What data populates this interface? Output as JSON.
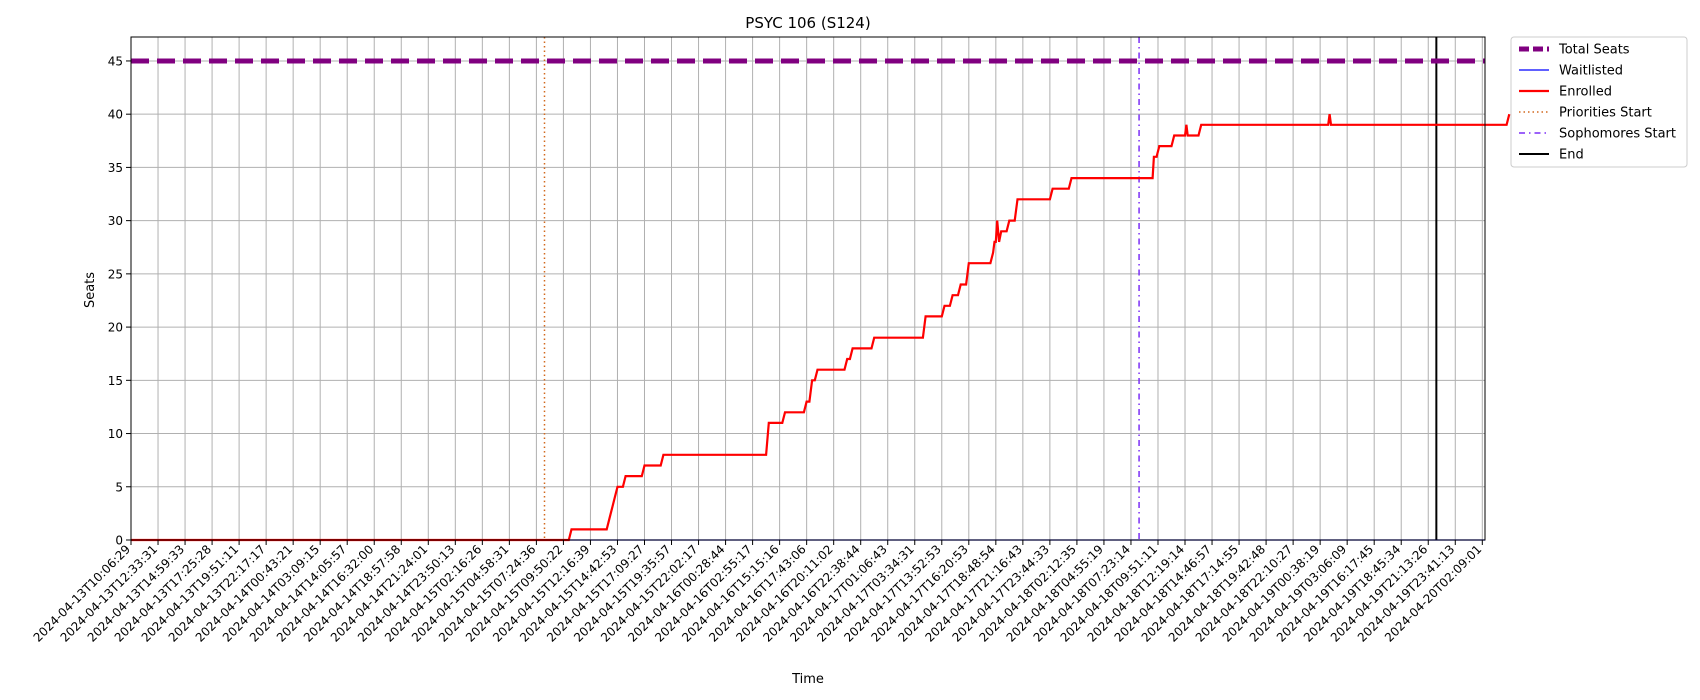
{
  "chart_data": {
    "type": "line",
    "title": "PSYC 106 (S124)",
    "xlabel": "Time",
    "ylabel": "Seats",
    "ylim": [
      0,
      47.25
    ],
    "y_ticks": [
      0,
      5,
      10,
      15,
      20,
      25,
      30,
      35,
      40,
      45
    ],
    "grid": true,
    "legend_position": "outside-top-right",
    "x_tick_labels": [
      "2024-04-13T10:06:29",
      "2024-04-13T12:33:31",
      "2024-04-13T14:59:33",
      "2024-04-13T17:25:28",
      "2024-04-13T19:51:11",
      "2024-04-13T22:17:17",
      "2024-04-14T00:43:21",
      "2024-04-14T03:09:15",
      "2024-04-14T14:05:57",
      "2024-04-14T16:32:00",
      "2024-04-14T18:57:58",
      "2024-04-14T21:24:01",
      "2024-04-14T23:50:13",
      "2024-04-15T02:16:26",
      "2024-04-15T04:58:31",
      "2024-04-15T07:24:36",
      "2024-04-15T09:50:22",
      "2024-04-15T12:16:39",
      "2024-04-15T14:42:53",
      "2024-04-15T17:09:27",
      "2024-04-15T19:35:57",
      "2024-04-15T22:02:17",
      "2024-04-16T00:28:44",
      "2024-04-16T02:55:17",
      "2024-04-16T15:15:16",
      "2024-04-16T17:43:06",
      "2024-04-16T20:11:02",
      "2024-04-16T22:38:44",
      "2024-04-17T01:06:43",
      "2024-04-17T03:34:31",
      "2024-04-17T13:52:53",
      "2024-04-17T16:20:53",
      "2024-04-17T18:48:54",
      "2024-04-17T21:16:43",
      "2024-04-17T23:44:33",
      "2024-04-18T02:12:35",
      "2024-04-18T04:55:19",
      "2024-04-18T07:23:14",
      "2024-04-18T09:51:11",
      "2024-04-18T12:19:14",
      "2024-04-18T14:46:57",
      "2024-04-18T17:14:55",
      "2024-04-18T19:42:48",
      "2024-04-18T22:10:27",
      "2024-04-19T00:38:19",
      "2024-04-19T03:06:09",
      "2024-04-19T16:17:45",
      "2024-04-19T18:45:34",
      "2024-04-19T21:13:26",
      "2024-04-19T23:41:13",
      "2024-04-20T02:09:01"
    ],
    "series": [
      {
        "name": "Total Seats",
        "color": "#800080",
        "style": "dashed-thick",
        "value": 45
      },
      {
        "name": "Waitlisted",
        "color": "#0000ff",
        "style": "solid-thin",
        "value": 0
      },
      {
        "name": "Enrolled",
        "color": "#ff0000",
        "style": "solid",
        "points": [
          [
            0,
            0
          ],
          [
            16.2,
            0
          ],
          [
            16.3,
            1
          ],
          [
            17.6,
            1
          ],
          [
            17.7,
            2
          ],
          [
            17.8,
            3
          ],
          [
            17.9,
            4
          ],
          [
            18.0,
            5
          ],
          [
            18.2,
            5
          ],
          [
            18.3,
            6
          ],
          [
            18.9,
            6
          ],
          [
            19.0,
            7
          ],
          [
            19.6,
            7
          ],
          [
            19.7,
            8
          ],
          [
            23.5,
            8
          ],
          [
            23.6,
            11
          ],
          [
            24.1,
            11
          ],
          [
            24.2,
            12
          ],
          [
            24.9,
            12
          ],
          [
            25.0,
            13
          ],
          [
            25.1,
            13
          ],
          [
            25.2,
            15
          ],
          [
            25.3,
            15
          ],
          [
            25.4,
            16
          ],
          [
            26.4,
            16
          ],
          [
            26.5,
            17
          ],
          [
            26.6,
            17
          ],
          [
            26.7,
            18
          ],
          [
            27.4,
            18
          ],
          [
            27.5,
            19
          ],
          [
            29.3,
            19
          ],
          [
            29.4,
            21
          ],
          [
            30.0,
            21
          ],
          [
            30.1,
            22
          ],
          [
            30.3,
            22
          ],
          [
            30.4,
            23
          ],
          [
            30.6,
            23
          ],
          [
            30.7,
            24
          ],
          [
            30.9,
            24
          ],
          [
            31.0,
            26
          ],
          [
            31.8,
            26
          ],
          [
            31.9,
            27
          ],
          [
            31.95,
            28
          ],
          [
            32.0,
            28
          ],
          [
            32.05,
            30
          ],
          [
            32.12,
            28
          ],
          [
            32.2,
            29
          ],
          [
            32.4,
            29
          ],
          [
            32.5,
            30
          ],
          [
            32.7,
            30
          ],
          [
            32.75,
            31
          ],
          [
            32.8,
            32
          ],
          [
            34.0,
            32
          ],
          [
            34.1,
            33
          ],
          [
            34.7,
            33
          ],
          [
            34.8,
            34
          ],
          [
            37.8,
            34
          ],
          [
            37.85,
            36
          ],
          [
            37.95,
            36
          ],
          [
            38.05,
            37
          ],
          [
            38.5,
            37
          ],
          [
            38.6,
            38
          ],
          [
            39.0,
            38
          ],
          [
            39.05,
            39
          ],
          [
            39.1,
            38
          ],
          [
            39.5,
            38
          ],
          [
            39.6,
            39
          ],
          [
            44.3,
            39
          ],
          [
            44.35,
            40
          ],
          [
            44.4,
            39
          ],
          [
            50.9,
            39
          ],
          [
            51.0,
            40
          ]
        ]
      },
      {
        "name": "Priorities Start",
        "color": "#d2691e",
        "style": "dotted-vertical",
        "x": 15.3
      },
      {
        "name": "Sophomores Start",
        "color": "#7b2ff7",
        "style": "dashdot-vertical",
        "x": 37.3
      },
      {
        "name": "End",
        "color": "#000000",
        "style": "solid-vertical",
        "x": 48.3
      }
    ]
  }
}
